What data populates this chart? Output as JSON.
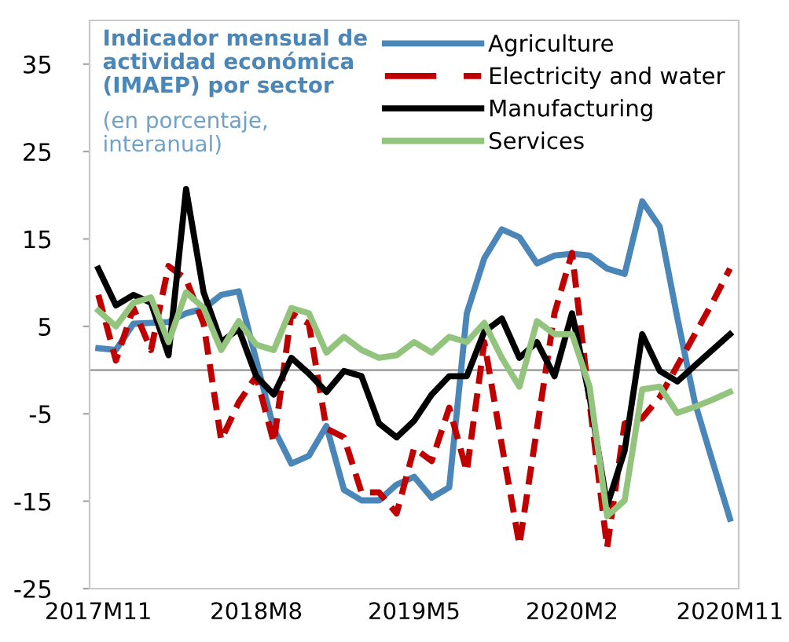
{
  "chart_data": {
    "type": "line",
    "title": "Indicador mensual de\nactividad económica\n(IMAEP) por sector",
    "subtitle": "(en porcentaje,\ninteranual)",
    "categories": [
      "2017M11",
      null,
      null,
      null,
      null,
      null,
      null,
      null,
      null,
      "2018M8",
      null,
      null,
      null,
      null,
      null,
      null,
      null,
      null,
      "2019M5",
      null,
      null,
      null,
      null,
      null,
      null,
      null,
      null,
      "2020M2",
      null,
      null,
      null,
      null,
      null,
      null,
      null,
      null,
      "2020M11"
    ],
    "series": [
      {
        "name": "Agriculture",
        "color": "#4a86b8",
        "line_style": "solid",
        "values": [
          2.5,
          2.3,
          5.3,
          5.4,
          5.5,
          6.5,
          7.0,
          8.6,
          9.0,
          1.1,
          -6.7,
          -10.7,
          -9.8,
          -6.4,
          -13.7,
          -14.9,
          -14.9,
          -13.1,
          -12.2,
          -14.6,
          -13.4,
          6.5,
          12.8,
          16.1,
          15.2,
          12.2,
          13.1,
          13.3,
          13.1,
          11.6,
          11.0,
          19.3,
          16.4,
          6.0,
          -3.7,
          -10.4,
          -17.0
        ]
      },
      {
        "name": "Electricity and water",
        "color": "#c00000",
        "line_style": "dashed",
        "values": [
          8.6,
          1.1,
          7.1,
          2.3,
          11.9,
          10.4,
          5.3,
          -8.0,
          -3.7,
          -0.7,
          -8.3,
          6.5,
          5.3,
          -6.7,
          -7.7,
          -14.0,
          -14.0,
          -16.4,
          -8.9,
          -10.4,
          -4.3,
          -11.6,
          3.2,
          -8.6,
          -20.0,
          -6.7,
          6.5,
          13.4,
          -3.7,
          -20.3,
          -6.1,
          -5.5,
          -3.1,
          0.5,
          4.1,
          7.7,
          11.6
        ]
      },
      {
        "name": "Manufacturing",
        "color": "#000000",
        "line_style": "solid",
        "values": [
          11.6,
          7.4,
          8.6,
          7.7,
          1.7,
          20.7,
          8.9,
          3.2,
          4.7,
          -0.7,
          -2.8,
          1.4,
          -0.4,
          -2.5,
          -0.1,
          -0.7,
          -6.1,
          -7.7,
          -5.8,
          -2.8,
          -0.7,
          -0.7,
          4.4,
          5.9,
          1.4,
          3.2,
          -0.7,
          6.5,
          -3.1,
          -15.5,
          -9.2,
          4.1,
          -0.1,
          -1.3,
          0.5,
          2.3,
          4.1
        ]
      },
      {
        "name": "Services",
        "color": "#93c47d",
        "line_style": "solid",
        "values": [
          6.8,
          5.0,
          7.7,
          8.3,
          3.2,
          8.9,
          7.1,
          2.3,
          5.6,
          2.9,
          2.3,
          7.1,
          6.5,
          2.0,
          3.8,
          2.3,
          1.4,
          1.7,
          3.2,
          2.0,
          3.8,
          3.2,
          5.4,
          1.4,
          -1.9,
          5.6,
          4.1,
          4.1,
          -1.9,
          -16.7,
          -14.9,
          -2.2,
          -1.9,
          -4.9,
          -4.2,
          -3.4,
          -2.5
        ]
      }
    ],
    "ylim": [
      -25,
      40
    ],
    "yticks": [
      -25,
      -15,
      -5,
      5,
      15,
      25,
      35
    ],
    "ref_lines": [
      {
        "axis": "y",
        "value": 0,
        "color": "#a6a6a6"
      }
    ],
    "grid": false,
    "legend": "top right",
    "marker": "none"
  }
}
